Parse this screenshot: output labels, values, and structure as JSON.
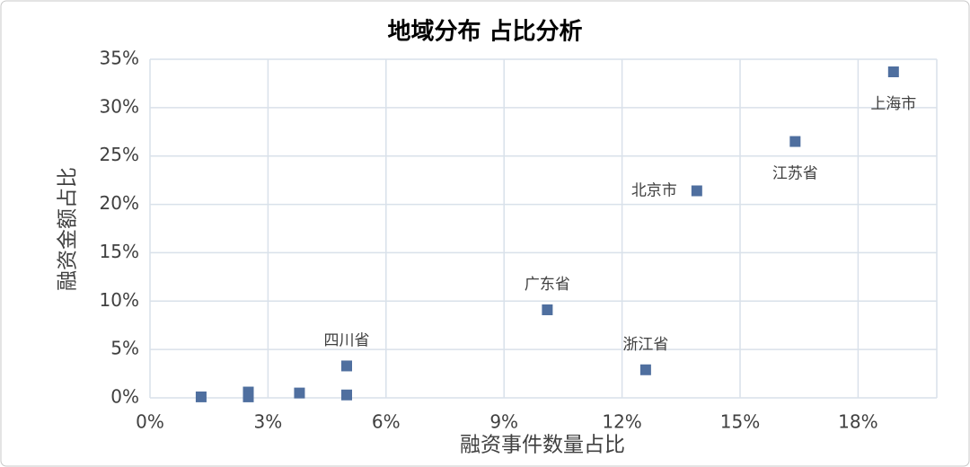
{
  "chart_data": {
    "type": "scatter",
    "title": "地域分布 占比分析",
    "x_label": "融资事件数量占比",
    "y_label": "融资金额占比",
    "color": "#4f6f9f",
    "grid": true,
    "xlim": [
      0,
      20
    ],
    "xticks": [
      {
        "value": 0,
        "label": "0%"
      },
      {
        "value": 3,
        "label": "3%"
      },
      {
        "value": 6,
        "label": "6%"
      },
      {
        "value": 9,
        "label": "9%"
      },
      {
        "value": 12,
        "label": "12%"
      },
      {
        "value": 15,
        "label": "15%"
      },
      {
        "value": 18,
        "label": "18%"
      }
    ],
    "ylim": [
      0,
      35
    ],
    "yticks": [
      {
        "value": 0,
        "label": "0%"
      },
      {
        "value": 5,
        "label": "5%"
      },
      {
        "value": 10,
        "label": "10%"
      },
      {
        "value": 15,
        "label": "15%"
      },
      {
        "value": 20,
        "label": "20%"
      },
      {
        "value": 25,
        "label": "25%"
      },
      {
        "value": 30,
        "label": "30%"
      },
      {
        "value": 35,
        "label": "35%"
      }
    ],
    "x": [
      1.3,
      2.5,
      2.5,
      3.8,
      5.0,
      5.0,
      10.1,
      12.6,
      13.9,
      16.4,
      18.9
    ],
    "values": [
      0.1,
      0.6,
      0.1,
      0.5,
      0.3,
      3.3,
      9.1,
      2.9,
      21.4,
      26.5,
      33.7
    ],
    "labels": [
      null,
      null,
      null,
      null,
      null,
      "四川省",
      "广东省",
      "浙江省",
      "北京市",
      "江苏省",
      "上海市"
    ]
  }
}
